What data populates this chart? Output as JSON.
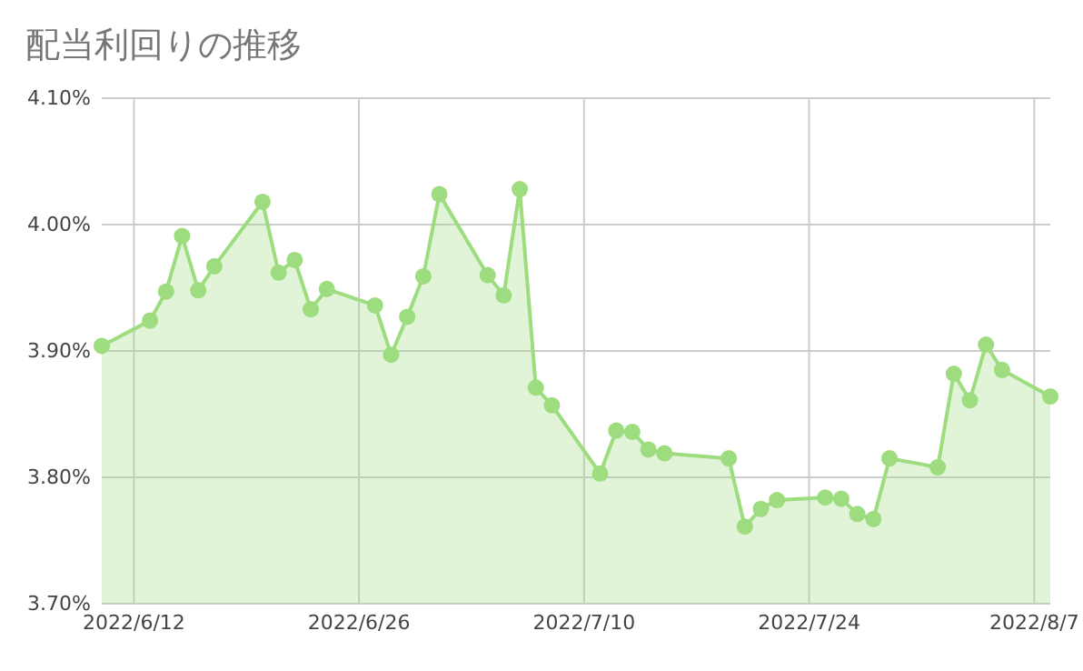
{
  "chart_data": {
    "type": "area",
    "title": "配当利回りの推移",
    "marker": "circle",
    "grid": true,
    "x": [
      "2022-06-10",
      "2022-06-13",
      "2022-06-14",
      "2022-06-15",
      "2022-06-16",
      "2022-06-17",
      "2022-06-20",
      "2022-06-21",
      "2022-06-22",
      "2022-06-23",
      "2022-06-24",
      "2022-06-27",
      "2022-06-28",
      "2022-06-29",
      "2022-06-30",
      "2022-07-01",
      "2022-07-04",
      "2022-07-05",
      "2022-07-06",
      "2022-07-07",
      "2022-07-08",
      "2022-07-11",
      "2022-07-12",
      "2022-07-13",
      "2022-07-14",
      "2022-07-15",
      "2022-07-19",
      "2022-07-20",
      "2022-07-21",
      "2022-07-22",
      "2022-07-25",
      "2022-07-26",
      "2022-07-27",
      "2022-07-28",
      "2022-07-29",
      "2022-08-01",
      "2022-08-02",
      "2022-08-03",
      "2022-08-04",
      "2022-08-05",
      "2022-08-08"
    ],
    "series": [
      {
        "color": "#9ddc7f",
        "values": [
          3.904,
          3.924,
          3.947,
          3.991,
          3.948,
          3.967,
          4.018,
          3.962,
          3.972,
          3.933,
          3.949,
          3.936,
          3.897,
          3.927,
          3.959,
          4.024,
          3.96,
          3.944,
          4.028,
          3.871,
          3.857,
          3.803,
          3.837,
          3.836,
          3.822,
          3.819,
          3.815,
          3.761,
          3.775,
          3.782,
          3.784,
          3.783,
          3.771,
          3.767,
          3.815,
          3.808,
          3.882,
          3.861,
          3.905,
          3.885,
          3.864
        ]
      }
    ],
    "xlim": [
      "2022-06-10",
      "2022-08-08"
    ],
    "xticks": [
      {
        "value": "2022-06-12",
        "label": "2022/6/12"
      },
      {
        "value": "2022-06-26",
        "label": "2022/6/26"
      },
      {
        "value": "2022-07-10",
        "label": "2022/7/10"
      },
      {
        "value": "2022-07-24",
        "label": "2022/7/24"
      },
      {
        "value": "2022-08-07",
        "label": "2022/8/7"
      }
    ],
    "ylim": [
      3.7,
      4.1
    ],
    "yticks": [
      {
        "value": 3.7,
        "label": "3.70%"
      },
      {
        "value": 3.8,
        "label": "3.80%"
      },
      {
        "value": 3.9,
        "label": "3.90%"
      },
      {
        "value": 4.0,
        "label": "4.00%"
      },
      {
        "value": 4.1,
        "label": "4.10%"
      }
    ]
  }
}
